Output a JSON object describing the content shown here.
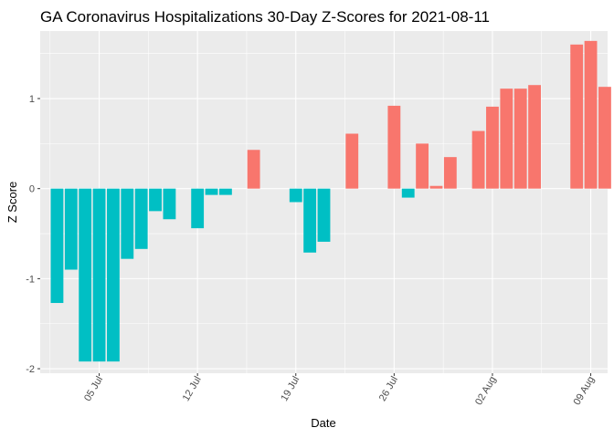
{
  "chart_data": {
    "type": "bar",
    "title": "GA Coronavirus Hospitalizations 30-Day Z-Scores for 2021-08-11",
    "xlabel": "Date",
    "ylabel": "Z Score",
    "ylim": [
      -2.05,
      1.75
    ],
    "y_ticks": [
      -2,
      -1,
      0,
      1
    ],
    "y_tick_labels": [
      "-2",
      "-1",
      "0",
      "1"
    ],
    "x_day_range": [
      -0.2,
      40.2
    ],
    "x_ticks": [
      {
        "day": 4,
        "label": "05 Jul"
      },
      {
        "day": 11,
        "label": "12 Jul"
      },
      {
        "day": 18,
        "label": "19 Jul"
      },
      {
        "day": 25,
        "label": "26 Jul"
      },
      {
        "day": 32,
        "label": "02 Aug"
      },
      {
        "day": 39,
        "label": "09 Aug"
      }
    ],
    "x_minor_days": [
      0.5,
      7.5,
      14.5,
      21.5,
      28.5,
      35.5
    ],
    "x_note": "day = days after 2021-07-01 (05 Jul = 4)",
    "colors": {
      "negative": "#00BFC4",
      "positive": "#F8766D",
      "panel": "#EBEBEB",
      "grid": "#FFFFFF",
      "tick": "#333333"
    },
    "bars": [
      {
        "day": 1,
        "date": "2021-07-02",
        "value": -1.27
      },
      {
        "day": 2,
        "date": "2021-07-03",
        "value": -0.9
      },
      {
        "day": 3,
        "date": "2021-07-04",
        "value": -1.92
      },
      {
        "day": 4,
        "date": "2021-07-05",
        "value": -1.92
      },
      {
        "day": 5,
        "date": "2021-07-06",
        "value": -1.92
      },
      {
        "day": 6,
        "date": "2021-07-07",
        "value": -0.78
      },
      {
        "day": 7,
        "date": "2021-07-08",
        "value": -0.67
      },
      {
        "day": 8,
        "date": "2021-07-09",
        "value": -0.25
      },
      {
        "day": 9,
        "date": "2021-07-10",
        "value": -0.34
      },
      {
        "day": 11,
        "date": "2021-07-12",
        "value": -0.44
      },
      {
        "day": 12,
        "date": "2021-07-13",
        "value": -0.07
      },
      {
        "day": 13,
        "date": "2021-07-14",
        "value": -0.07
      },
      {
        "day": 15,
        "date": "2021-07-16",
        "value": 0.43
      },
      {
        "day": 18,
        "date": "2021-07-19",
        "value": -0.15
      },
      {
        "day": 19,
        "date": "2021-07-20",
        "value": -0.71
      },
      {
        "day": 20,
        "date": "2021-07-21",
        "value": -0.59
      },
      {
        "day": 22,
        "date": "2021-07-23",
        "value": 0.61
      },
      {
        "day": 25,
        "date": "2021-07-26",
        "value": 0.92
      },
      {
        "day": 26,
        "date": "2021-07-27",
        "value": -0.1
      },
      {
        "day": 27,
        "date": "2021-07-28",
        "value": 0.5
      },
      {
        "day": 28,
        "date": "2021-07-29",
        "value": 0.03
      },
      {
        "day": 29,
        "date": "2021-07-30",
        "value": 0.35
      },
      {
        "day": 31,
        "date": "2021-08-01",
        "value": 0.64
      },
      {
        "day": 32,
        "date": "2021-08-02",
        "value": 0.91
      },
      {
        "day": 33,
        "date": "2021-08-03",
        "value": 1.11
      },
      {
        "day": 34,
        "date": "2021-08-04",
        "value": 1.11
      },
      {
        "day": 35,
        "date": "2021-08-05",
        "value": 1.15
      },
      {
        "day": 38,
        "date": "2021-08-08",
        "value": 1.6
      },
      {
        "day": 39,
        "date": "2021-08-09",
        "value": 1.64
      },
      {
        "day": 40,
        "date": "2021-08-10",
        "value": 1.13
      }
    ]
  }
}
